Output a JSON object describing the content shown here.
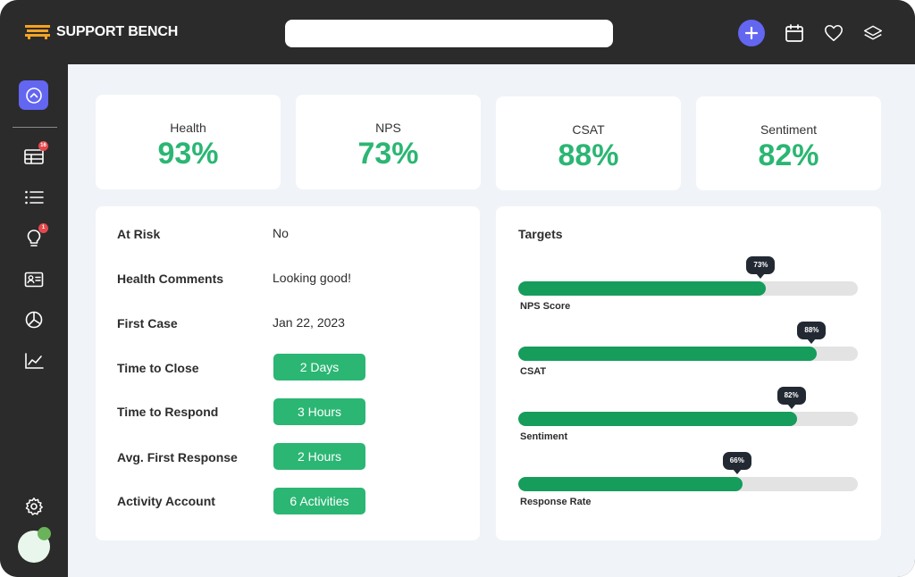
{
  "brand": {
    "name": "SUPPORT BENCH",
    "accent": "#6366f1",
    "green": "#2bb673",
    "bar_green": "#169c5b"
  },
  "search": {
    "placeholder": ""
  },
  "top_icons": [
    "plus-icon",
    "calendar-icon",
    "heart-icon",
    "layers-icon"
  ],
  "sidebar": {
    "items": [
      {
        "icon": "chevron-up-circle-icon",
        "active": true
      },
      {
        "icon": "table-icon",
        "badge": "16"
      },
      {
        "icon": "list-icon"
      },
      {
        "icon": "lightbulb-icon",
        "badge": "1"
      },
      {
        "icon": "contact-card-icon"
      },
      {
        "icon": "pie-chart-icon"
      },
      {
        "icon": "line-chart-icon"
      },
      {
        "icon": "gear-icon"
      }
    ]
  },
  "stats": [
    {
      "title": "Health",
      "value": "93%"
    },
    {
      "title": "NPS",
      "value": "73%"
    },
    {
      "title": "CSAT",
      "value": "88%"
    },
    {
      "title": "Sentiment",
      "value": "82%"
    }
  ],
  "details": [
    {
      "label": "At Risk",
      "value": "No"
    },
    {
      "label": "Health Comments",
      "value": "Looking good!"
    },
    {
      "label": "First Case",
      "value": "Jan 22, 2023"
    },
    {
      "label": "Time to Close",
      "value": "2 Days"
    },
    {
      "label": "Time to Respond",
      "value": "3 Hours"
    },
    {
      "label": "Avg. First Response",
      "value": "2 Hours"
    },
    {
      "label": "Activity Account",
      "value": "6 Activities"
    }
  ],
  "targets": {
    "title": "Targets",
    "bars": [
      {
        "label": "NPS Score",
        "percent": 73,
        "display": "73%"
      },
      {
        "label": "CSAT",
        "percent": 88,
        "display": "88%"
      },
      {
        "label": "Sentiment",
        "percent": 82,
        "display": "82%"
      },
      {
        "label": "Response Rate",
        "percent": 66,
        "display": "66%"
      }
    ]
  }
}
